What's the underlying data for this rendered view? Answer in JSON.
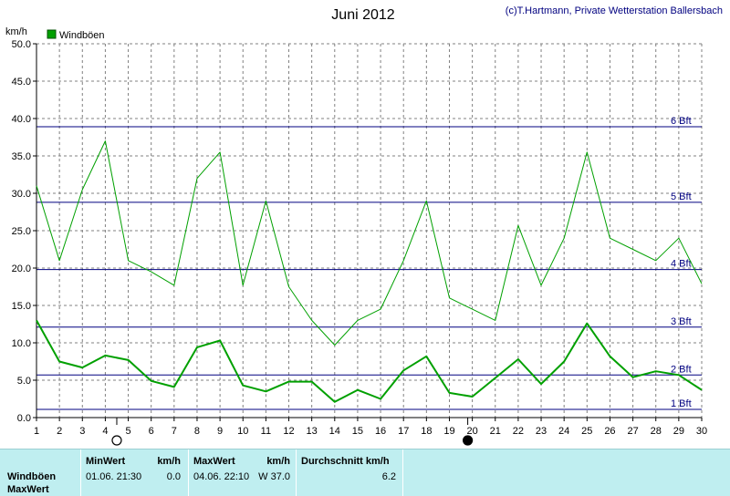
{
  "chart_data": {
    "type": "line",
    "title": "Juni 2012",
    "credit": "(c)T.Hartmann, Private Wetterstation Ballersbach",
    "ylabel": "km/h",
    "ylim": [
      0,
      50
    ],
    "yticks": [
      "0.0",
      "5.0",
      "10.0",
      "15.0",
      "20.0",
      "25.0",
      "30.0",
      "35.0",
      "40.0",
      "45.0",
      "50.0"
    ],
    "xlim": [
      1,
      30
    ],
    "x": [
      1,
      2,
      3,
      4,
      5,
      6,
      7,
      8,
      9,
      10,
      11,
      12,
      13,
      14,
      15,
      16,
      17,
      18,
      19,
      20,
      21,
      22,
      23,
      24,
      25,
      26,
      27,
      28,
      29,
      30
    ],
    "legend": [
      "Windböen"
    ],
    "series": [
      {
        "name": "Windböen",
        "role": "daily max gust",
        "color": "#00a000",
        "width": 1,
        "values": [
          31,
          21,
          30.5,
          37,
          21,
          19.5,
          17.7,
          32,
          35.5,
          17.7,
          29,
          17.5,
          13,
          9.7,
          13,
          14.5,
          21,
          29,
          16,
          14.5,
          13,
          25.7,
          17.7,
          24,
          35.5,
          24,
          22.5,
          21,
          24,
          17.9
        ]
      },
      {
        "name": "",
        "role": "daily mean",
        "color": "#00a000",
        "width": 2,
        "values": [
          13,
          7.5,
          6.7,
          8.3,
          7.7,
          4.9,
          4.1,
          9.4,
          10.3,
          4.3,
          3.5,
          4.8,
          4.8,
          2.1,
          3.7,
          2.5,
          6.3,
          8.2,
          3.3,
          2.8,
          5.3,
          7.8,
          4.5,
          7.5,
          12.6,
          8.2,
          5.4,
          6.2,
          5.7,
          3.7
        ]
      }
    ],
    "beaufort": [
      {
        "label": "1 Bft",
        "value": 1.1
      },
      {
        "label": "2 Bft",
        "value": 5.7
      },
      {
        "label": "3 Bft",
        "value": 12.1
      },
      {
        "label": "4 Bft",
        "value": 19.8
      },
      {
        "label": "5 Bft",
        "value": 28.8
      },
      {
        "label": "6 Bft",
        "value": 38.9
      }
    ],
    "moon_phases": [
      {
        "day": 4.5,
        "phase": "full"
      },
      {
        "day": 19.8,
        "phase": "new"
      }
    ],
    "colors": {
      "series": "#00a000",
      "beaufort": "#000080",
      "grid": "#808080"
    }
  },
  "footer": {
    "row1": "Windböen",
    "row2": "MaxWert",
    "min_header": "MinWert",
    "min_unit": "km/h",
    "min_datetime": "01.06.  21:30",
    "min_value": "0.0",
    "max_header": "MaxWert",
    "max_unit": "km/h",
    "max_datetime": "04.06.  22:10",
    "max_value": "W 37.0",
    "avg_header": "Durchschnitt km/h",
    "avg_value": "6.2"
  }
}
